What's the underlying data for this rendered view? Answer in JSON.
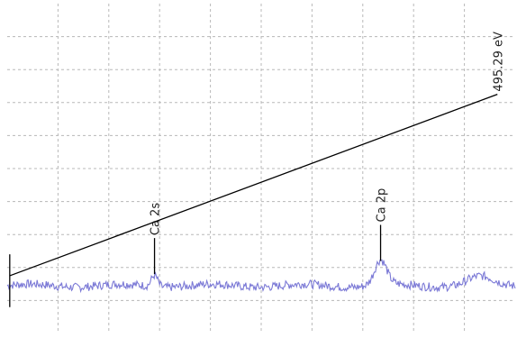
{
  "chart_data": {
    "type": "line",
    "title": "",
    "xlabel": "",
    "ylabel": "",
    "grid": true,
    "xlim": [
      0,
      100
    ],
    "ylim": [
      0,
      100
    ],
    "series": [
      {
        "color": "#7b79d6",
        "baseline": 14.5,
        "noise_amplitude": 1.3
      }
    ],
    "peaks": [
      {
        "label": "Ca 2s",
        "x": 29.0,
        "height": 3.5,
        "width": 0.6
      },
      {
        "label": "Ca 2p",
        "x": 73.5,
        "height": 7.5,
        "width": 1.2
      }
    ],
    "background_rise": [
      {
        "x": 93,
        "height": 2.5,
        "width": 2.5
      }
    ],
    "range_marker": {
      "label": "495.29 eV",
      "start": {
        "x": 0.5,
        "y": 17.5
      },
      "end": {
        "x": 96.5,
        "y": 72.5
      },
      "start_tick_top": 24,
      "start_tick_bottom": 8
    },
    "colors": {
      "grid": "#b8b8b8",
      "marker": "#000000",
      "spectrum": "#7b79d6"
    }
  }
}
